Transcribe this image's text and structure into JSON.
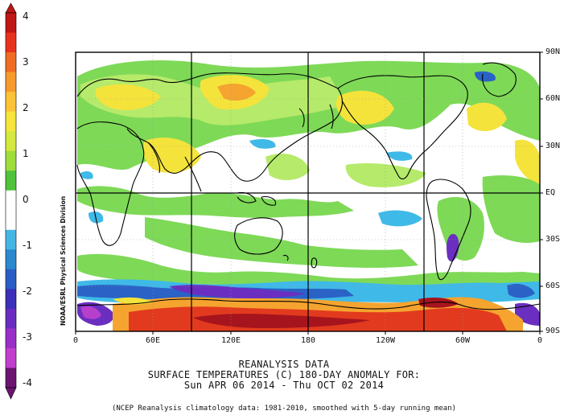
{
  "colorbar": {
    "labels": [
      "4",
      "3",
      "2",
      "1",
      "0",
      "-1",
      "-2",
      "-3",
      "-4"
    ],
    "colors": [
      "#c01616",
      "#e8321e",
      "#f06b24",
      "#f79a2b",
      "#fcc336",
      "#f6e53a",
      "#d4e840",
      "#9fdc3c",
      "#4fc33b",
      "#ffffff",
      "#ffffff",
      "#44b6e6",
      "#2a88cf",
      "#2a5dc4",
      "#3c2fb8",
      "#6a2cc0",
      "#9a2fc7",
      "#c23fcd",
      "#6b1570"
    ]
  },
  "map": {
    "lon_labels": [
      "0",
      "60E",
      "120E",
      "180",
      "120W",
      "60W",
      "0"
    ],
    "lat_labels": [
      "90N",
      "60N",
      "30N",
      "EQ",
      "30S",
      "60S",
      "90S"
    ],
    "colors": {
      "land_outline": "#000000",
      "green": "#7ed957",
      "lightgreen": "#b6ea6a",
      "yellow": "#f4e33b",
      "orange": "#f4a42f",
      "red": "#e23a1e",
      "darkred": "#a6141e",
      "cyan": "#3fb9e8",
      "blue": "#2a62c6",
      "purple": "#6a2fc0",
      "magenta": "#b63fcc"
    }
  },
  "credit": "NOAA/ESRL Physical Sciences Division",
  "caption": {
    "line1": "REANALYSIS DATA",
    "line2": "SURFACE TEMPERATURES (C)   180-DAY ANOMALY FOR:",
    "line3": "Sun APR 06 2014 - Thu OCT 02 2014"
  },
  "footnote": "(NCEP Reanalysis climatology data: 1981-2010, smoothed with 5-day running mean)"
}
